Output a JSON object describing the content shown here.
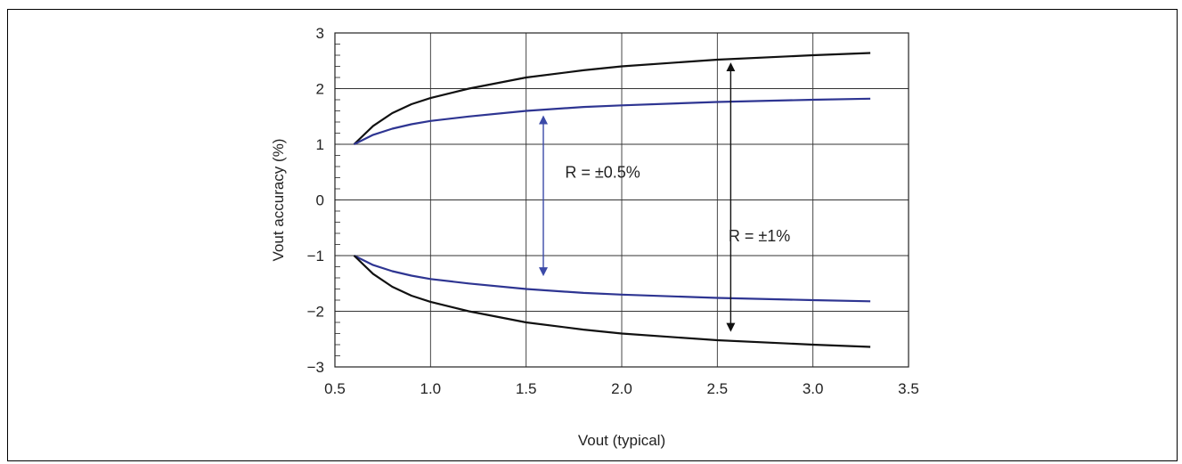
{
  "chart_data": {
    "type": "line",
    "title": "",
    "xlabel": "Vout (typical)",
    "ylabel": "Vout accuracy (%)",
    "xlim": [
      0.5,
      3.5
    ],
    "ylim": [
      -3,
      3
    ],
    "xticks": [
      0.5,
      1.0,
      1.5,
      2.0,
      2.5,
      3.0,
      3.5
    ],
    "xtick_labels": [
      "0.5",
      "1.0",
      "1.5",
      "2.0",
      "2.5",
      "3.0",
      "3.5"
    ],
    "yticks": [
      -3,
      -2,
      -1,
      0,
      1,
      2,
      3
    ],
    "ytick_labels": [
      "−3",
      "−2",
      "−1",
      "0",
      "1",
      "2",
      "3"
    ],
    "grid": true,
    "legend": "none",
    "series": [
      {
        "color": "#111111",
        "x": [
          0.6,
          0.7,
          0.8,
          0.9,
          1.0,
          1.2,
          1.5,
          1.8,
          2.0,
          2.5,
          3.0,
          3.3
        ],
        "y": [
          1.0,
          1.33,
          1.56,
          1.72,
          1.83,
          2.0,
          2.2,
          2.33,
          2.4,
          2.52,
          2.6,
          2.64
        ]
      },
      {
        "color": "#2e3592",
        "x": [
          0.6,
          0.7,
          0.8,
          0.9,
          1.0,
          1.2,
          1.5,
          1.8,
          2.0,
          2.5,
          3.0,
          3.3
        ],
        "y": [
          1.0,
          1.17,
          1.28,
          1.36,
          1.42,
          1.5,
          1.6,
          1.67,
          1.7,
          1.76,
          1.8,
          1.82
        ]
      },
      {
        "color": "#2e3592",
        "x": [
          0.6,
          0.7,
          0.8,
          0.9,
          1.0,
          1.2,
          1.5,
          1.8,
          2.0,
          2.5,
          3.0,
          3.3
        ],
        "y": [
          -1.0,
          -1.17,
          -1.28,
          -1.36,
          -1.42,
          -1.5,
          -1.6,
          -1.67,
          -1.7,
          -1.76,
          -1.8,
          -1.82
        ]
      },
      {
        "color": "#111111",
        "x": [
          0.6,
          0.7,
          0.8,
          0.9,
          1.0,
          1.2,
          1.5,
          1.8,
          2.0,
          2.5,
          3.0,
          3.3
        ],
        "y": [
          -1.0,
          -1.33,
          -1.56,
          -1.72,
          -1.83,
          -2.0,
          -2.2,
          -2.33,
          -2.4,
          -2.52,
          -2.6,
          -2.64
        ]
      }
    ],
    "annotations": [
      {
        "text": "R = ±0.5%",
        "x": 1.9,
        "y": 0.5,
        "arrow_x": 1.59,
        "arrow_y": [
          1.6,
          -1.45
        ],
        "color": "#3b4aa8"
      },
      {
        "text": "R = ±1%",
        "x": 2.72,
        "y": -0.65,
        "arrow_x": 2.57,
        "arrow_y": [
          2.55,
          -2.45
        ],
        "color": "#111111"
      }
    ]
  }
}
